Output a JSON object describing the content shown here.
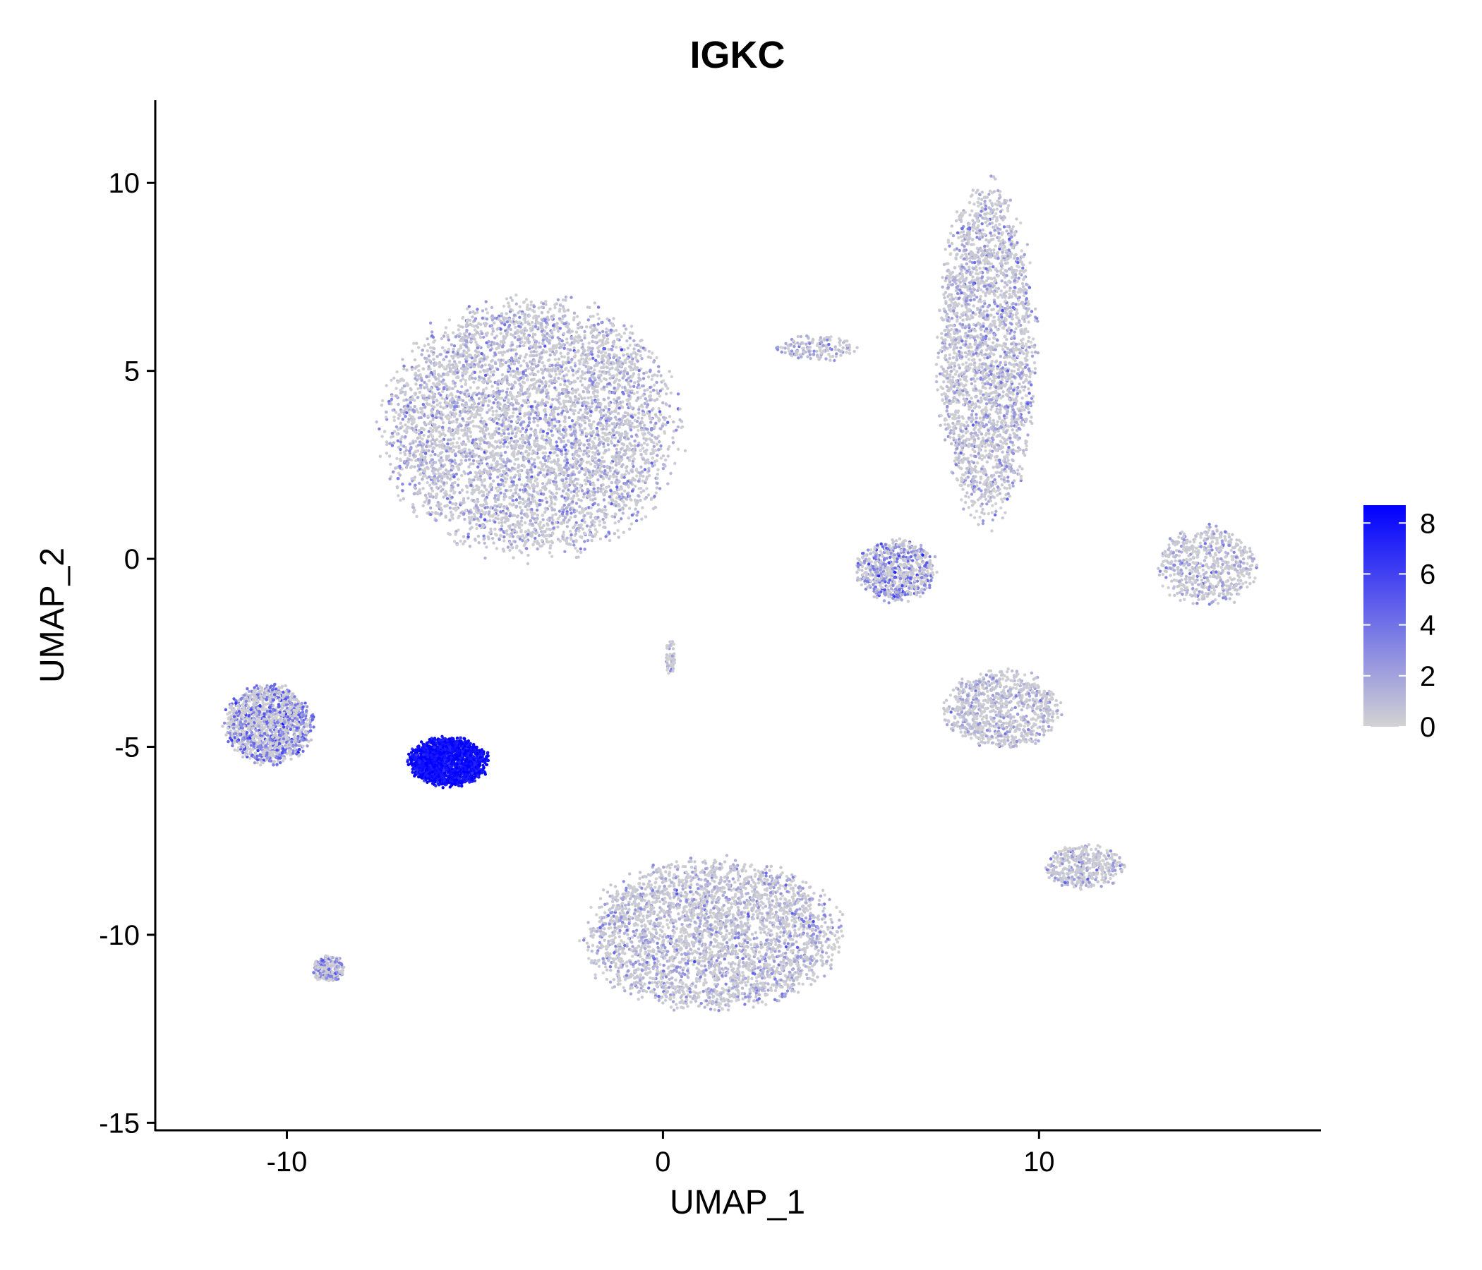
{
  "chart_data": {
    "type": "scatter",
    "title": "IGKC",
    "xlabel": "UMAP_1",
    "ylabel": "UMAP_2",
    "xlim": [
      -13.5,
      17.5
    ],
    "ylim": [
      -15.2,
      12.2
    ],
    "x_ticks": [
      -10,
      0,
      10
    ],
    "y_ticks": [
      10,
      5,
      0,
      -5,
      -10,
      -15
    ],
    "x_tick_labels": [
      "-10",
      "0",
      "10"
    ],
    "y_tick_labels": [
      "10",
      "5",
      "0",
      "-5",
      "-10",
      "-15"
    ],
    "grid": false,
    "legend": {
      "position": "right",
      "type": "colorbar",
      "range": [
        0,
        8.7
      ],
      "ticks": [
        8,
        6,
        4,
        2,
        0
      ],
      "tick_labels": [
        "8",
        "6",
        "4",
        "2",
        "0"
      ],
      "color_low": "#d3d3d3",
      "color_high": "#0000ff"
    },
    "clusters": [
      {
        "name": "large-top-left-cluster",
        "center": [
          -3.5,
          3.5
        ],
        "spread": [
          3.3,
          2.9
        ],
        "n": 5200,
        "mean_expr": 1.6
      },
      {
        "name": "top-right-column-cluster",
        "center": [
          8.6,
          5.5
        ],
        "spread": [
          1.1,
          3.8
        ],
        "n": 2600,
        "mean_expr": 1.5
      },
      {
        "name": "mid-right-small-cluster",
        "center": [
          6.2,
          -0.3
        ],
        "spread": [
          0.9,
          0.7
        ],
        "n": 700,
        "mean_expr": 3.2
      },
      {
        "name": "far-right-crescent-cluster",
        "center": [
          14.5,
          -0.2
        ],
        "spread": [
          1.1,
          0.9
        ],
        "n": 600,
        "mean_expr": 1.0
      },
      {
        "name": "center-right-cluster",
        "center": [
          9.0,
          -4.0
        ],
        "spread": [
          1.3,
          0.9
        ],
        "n": 900,
        "mean_expr": 0.9
      },
      {
        "name": "lower-right-small-cluster",
        "center": [
          11.2,
          -8.2
        ],
        "spread": [
          0.9,
          0.5
        ],
        "n": 400,
        "mean_expr": 1.4
      },
      {
        "name": "bottom-center-cluster",
        "center": [
          1.3,
          -10.0
        ],
        "spread": [
          2.9,
          1.7
        ],
        "n": 3200,
        "mean_expr": 1.4
      },
      {
        "name": "left-purple-cluster",
        "center": [
          -10.5,
          -4.4
        ],
        "spread": [
          1.0,
          0.9
        ],
        "n": 1400,
        "mean_expr": 3.6
      },
      {
        "name": "plasma-cell-cluster",
        "center": [
          -5.7,
          -5.4
        ],
        "spread": [
          0.9,
          0.55
        ],
        "n": 1600,
        "mean_expr": 8.2
      },
      {
        "name": "small-bottom-left-cluster",
        "center": [
          -8.9,
          -10.9
        ],
        "spread": [
          0.35,
          0.3
        ],
        "n": 220,
        "mean_expr": 3.0
      },
      {
        "name": "thin-center-strand",
        "center": [
          0.2,
          -2.6
        ],
        "spread": [
          0.1,
          0.45
        ],
        "n": 60,
        "mean_expr": 0.8
      },
      {
        "name": "small-top-center-strands",
        "center": [
          4.1,
          5.6
        ],
        "spread": [
          0.9,
          0.3
        ],
        "n": 150,
        "mean_expr": 1.2
      }
    ]
  }
}
